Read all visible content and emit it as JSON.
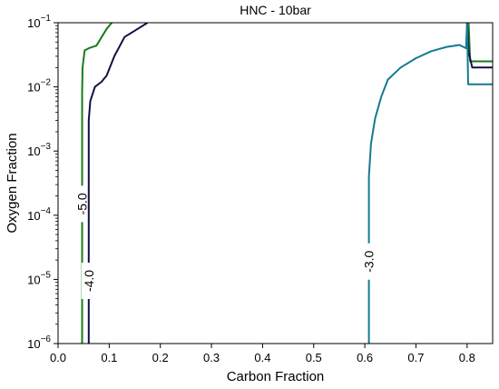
{
  "chart_data": {
    "type": "line",
    "title": "HNC - 10bar",
    "xlabel": "Carbon Fraction",
    "ylabel": "Oxygen Fraction",
    "xlim": [
      0.0,
      0.85
    ],
    "ylim": [
      1e-06,
      0.1
    ],
    "yscale": "log",
    "grid": false,
    "x_ticks": [
      {
        "value": 0.0,
        "label": "0.0"
      },
      {
        "value": 0.1,
        "label": "0.1"
      },
      {
        "value": 0.2,
        "label": "0.2"
      },
      {
        "value": 0.3,
        "label": "0.3"
      },
      {
        "value": 0.4,
        "label": "0.4"
      },
      {
        "value": 0.5,
        "label": "0.5"
      },
      {
        "value": 0.6,
        "label": "0.6"
      },
      {
        "value": 0.7,
        "label": "0.7"
      },
      {
        "value": 0.8,
        "label": "0.8"
      }
    ],
    "y_ticks": [
      {
        "value": 1e-06,
        "base": "10",
        "exp": "−6"
      },
      {
        "value": 1e-05,
        "base": "10",
        "exp": "−5"
      },
      {
        "value": 0.0001,
        "base": "10",
        "exp": "−4"
      },
      {
        "value": 0.001,
        "base": "10",
        "exp": "−3"
      },
      {
        "value": 0.01,
        "base": "10",
        "exp": "−2"
      },
      {
        "value": 0.1,
        "base": "10",
        "exp": "−1"
      }
    ],
    "series": [
      {
        "label": "-5.0",
        "color": "#1a7a1a",
        "label_at": [
          0.047,
          0.00015
        ],
        "paths": [
          [
            [
              0.047,
              1e-06
            ],
            [
              0.047,
              0.008
            ],
            [
              0.048,
              0.02
            ],
            [
              0.052,
              0.037
            ],
            [
              0.06,
              0.04
            ],
            [
              0.075,
              0.044
            ],
            [
              0.095,
              0.08
            ],
            [
              0.105,
              0.1
            ]
          ],
          [
            [
              0.803,
              0.1
            ],
            [
              0.806,
              0.025
            ],
            [
              0.85,
              0.025
            ]
          ]
        ]
      },
      {
        "label": "-4.0",
        "color": "#111146",
        "label_at": [
          0.06,
          9.5e-06
        ],
        "paths": [
          [
            [
              0.06,
              1e-06
            ],
            [
              0.06,
              0.003
            ],
            [
              0.063,
              0.006
            ],
            [
              0.072,
              0.01
            ],
            [
              0.085,
              0.012
            ],
            [
              0.095,
              0.015
            ],
            [
              0.11,
              0.03
            ],
            [
              0.13,
              0.06
            ],
            [
              0.15,
              0.075
            ],
            [
              0.175,
              0.1
            ]
          ],
          [
            [
              0.8,
              0.1
            ],
            [
              0.803,
              0.035
            ],
            [
              0.81,
              0.02
            ],
            [
              0.85,
              0.02
            ]
          ]
        ]
      },
      {
        "label": "-3.0",
        "color": "#157a91",
        "label_at": [
          0.608,
          1.9e-05
        ],
        "paths": [
          [
            [
              0.608,
              1e-06
            ],
            [
              0.608,
              0.0004
            ],
            [
              0.612,
              0.0013
            ],
            [
              0.62,
              0.0032
            ],
            [
              0.632,
              0.007
            ],
            [
              0.645,
              0.013
            ],
            [
              0.67,
              0.02
            ],
            [
              0.7,
              0.028
            ],
            [
              0.73,
              0.036
            ],
            [
              0.76,
              0.042
            ],
            [
              0.785,
              0.045
            ],
            [
              0.798,
              0.04
            ],
            [
              0.8,
              0.1
            ]
          ],
          [
            [
              0.8,
              0.1
            ],
            [
              0.802,
              0.011
            ],
            [
              0.85,
              0.011
            ]
          ]
        ]
      }
    ]
  }
}
